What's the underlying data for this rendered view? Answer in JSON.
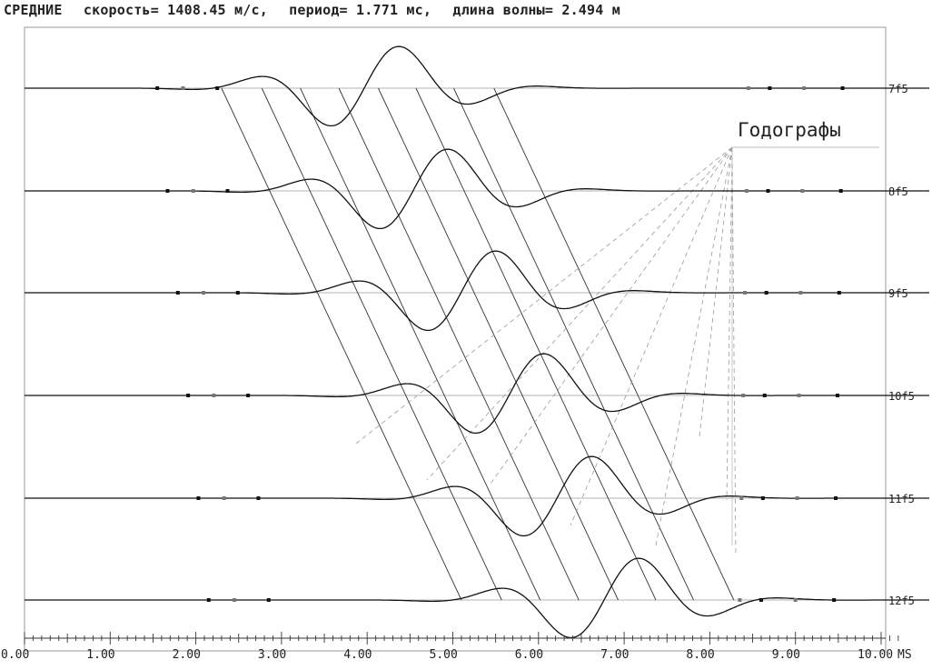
{
  "header": {
    "mode": "СРЕДНИЕ",
    "speed": "скорость= 1408.45 м/с,",
    "period": "период= 1.771 мс,",
    "wavelength": "длина волны= 2.494 м"
  },
  "annotation": {
    "hodographs_label": "Годографы"
  },
  "colors": {
    "trace": "#111111",
    "grid": "#888888",
    "background": "#ffffff",
    "dashed": "#999999"
  },
  "chart_data": {
    "type": "line",
    "title": "",
    "xlabel": "MS",
    "ylabel": "",
    "xlim": [
      0,
      10.2
    ],
    "grid": false,
    "x_ticks": [
      "0.00",
      "1.00",
      "2.00",
      "3.00",
      "4.00",
      "5.00",
      "6.00",
      "7.00",
      "8.00",
      "9.00",
      "10.00"
    ],
    "x_tick_values": [
      0,
      1,
      2,
      3,
      4,
      5,
      6,
      7,
      8,
      9,
      10
    ],
    "series": [
      {
        "name": "7f5",
        "pulse_center_ms": 4.05,
        "amplitude": 1.0
      },
      {
        "name": "8f5",
        "pulse_center_ms": 4.62,
        "amplitude": 1.0
      },
      {
        "name": "9f5",
        "pulse_center_ms": 5.18,
        "amplitude": 1.0
      },
      {
        "name": "10f5",
        "pulse_center_ms": 5.74,
        "amplitude": 1.0
      },
      {
        "name": "11f5",
        "pulse_center_ms": 6.3,
        "amplitude": 1.0
      },
      {
        "name": "12f5",
        "pulse_center_ms": 6.85,
        "amplitude": 1.0
      }
    ],
    "period_ms": 1.771,
    "velocity_m_s": 1408.45,
    "wavelength_m": 2.494
  }
}
